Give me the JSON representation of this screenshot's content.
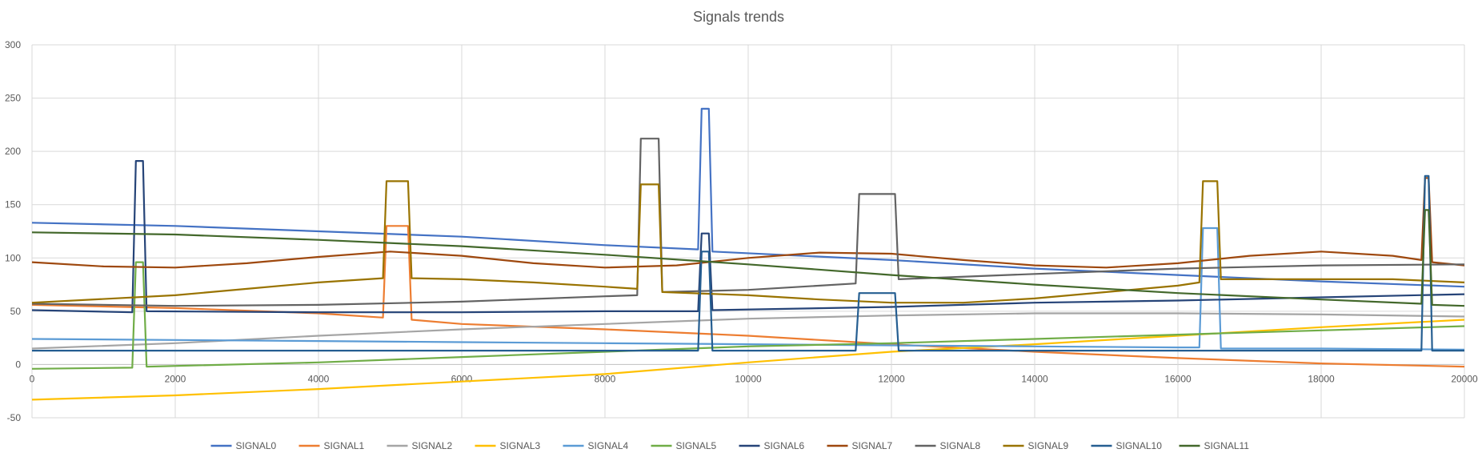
{
  "chart_data": {
    "type": "line",
    "title": "Signals trends",
    "xlim": [
      0,
      20000
    ],
    "ylim": [
      -50,
      300
    ],
    "x_ticks": [
      "0",
      "2000",
      "4000",
      "6000",
      "8000",
      "10000",
      "12000",
      "14000",
      "16000",
      "18000",
      "20000"
    ],
    "y_ticks": [
      "-50",
      "0",
      "50",
      "100",
      "150",
      "200",
      "250",
      "300"
    ],
    "grid": true,
    "legend_position": "bottom",
    "series": [
      {
        "name": "SIGNAL0",
        "color": "#4472c4",
        "points": [
          [
            0,
            133
          ],
          [
            2000,
            130
          ],
          [
            4000,
            125
          ],
          [
            6000,
            120
          ],
          [
            8000,
            112
          ],
          [
            9300,
            108
          ],
          [
            9350,
            240
          ],
          [
            9450,
            240
          ],
          [
            9500,
            106
          ],
          [
            12000,
            98
          ],
          [
            14000,
            90
          ],
          [
            16000,
            84
          ],
          [
            18000,
            78
          ],
          [
            20000,
            73
          ]
        ]
      },
      {
        "name": "SIGNAL1",
        "color": "#ed7d31",
        "points": [
          [
            0,
            56
          ],
          [
            2000,
            53
          ],
          [
            4000,
            48
          ],
          [
            4900,
            44
          ],
          [
            4950,
            130
          ],
          [
            5250,
            130
          ],
          [
            5300,
            42
          ],
          [
            6000,
            38
          ],
          [
            8000,
            33
          ],
          [
            10000,
            27
          ],
          [
            12000,
            19
          ],
          [
            14000,
            12
          ],
          [
            16000,
            6
          ],
          [
            18000,
            1
          ],
          [
            20000,
            -2
          ]
        ]
      },
      {
        "name": "SIGNAL2",
        "color": "#a5a5a5",
        "points": [
          [
            0,
            15
          ],
          [
            2000,
            20
          ],
          [
            4000,
            27
          ],
          [
            6000,
            33
          ],
          [
            8000,
            38
          ],
          [
            10000,
            43
          ],
          [
            12000,
            46
          ],
          [
            14000,
            48
          ],
          [
            16000,
            48
          ],
          [
            18000,
            47
          ],
          [
            20000,
            45
          ]
        ]
      },
      {
        "name": "SIGNAL3",
        "color": "#ffc000",
        "points": [
          [
            0,
            -33
          ],
          [
            2000,
            -29
          ],
          [
            4000,
            -23
          ],
          [
            6000,
            -16
          ],
          [
            8000,
            -9
          ],
          [
            10000,
            2
          ],
          [
            12000,
            12
          ],
          [
            14000,
            19
          ],
          [
            16000,
            27
          ],
          [
            18000,
            35
          ],
          [
            20000,
            42
          ]
        ]
      },
      {
        "name": "SIGNAL4",
        "color": "#5b9bd5",
        "points": [
          [
            0,
            24
          ],
          [
            2000,
            23
          ],
          [
            4000,
            22
          ],
          [
            6000,
            21
          ],
          [
            8000,
            20
          ],
          [
            10000,
            19
          ],
          [
            12000,
            18
          ],
          [
            14000,
            17
          ],
          [
            16000,
            16
          ],
          [
            16300,
            16
          ],
          [
            16350,
            128
          ],
          [
            16550,
            128
          ],
          [
            16600,
            15
          ],
          [
            18000,
            15
          ],
          [
            20000,
            14
          ]
        ]
      },
      {
        "name": "SIGNAL5",
        "color": "#70ad47",
        "points": [
          [
            0,
            -4
          ],
          [
            1400,
            -3
          ],
          [
            1450,
            96
          ],
          [
            1550,
            96
          ],
          [
            1600,
            -2
          ],
          [
            4000,
            2
          ],
          [
            6000,
            7
          ],
          [
            8000,
            12
          ],
          [
            10000,
            17
          ],
          [
            12000,
            20
          ],
          [
            14000,
            24
          ],
          [
            16000,
            28
          ],
          [
            18000,
            32
          ],
          [
            20000,
            36
          ]
        ]
      },
      {
        "name": "SIGNAL6",
        "color": "#264478",
        "points": [
          [
            0,
            51
          ],
          [
            1400,
            49
          ],
          [
            1450,
            191
          ],
          [
            1550,
            191
          ],
          [
            1600,
            50
          ],
          [
            4000,
            49
          ],
          [
            6000,
            49
          ],
          [
            8000,
            50
          ],
          [
            9300,
            50
          ],
          [
            9350,
            123
          ],
          [
            9450,
            123
          ],
          [
            9500,
            51
          ],
          [
            12000,
            54
          ],
          [
            14000,
            58
          ],
          [
            16000,
            60
          ],
          [
            18000,
            63
          ],
          [
            20000,
            66
          ]
        ]
      },
      {
        "name": "SIGNAL7",
        "color": "#9e480e",
        "points": [
          [
            0,
            96
          ],
          [
            1000,
            92
          ],
          [
            2000,
            91
          ],
          [
            3000,
            95
          ],
          [
            4000,
            101
          ],
          [
            5000,
            106
          ],
          [
            6000,
            102
          ],
          [
            7000,
            95
          ],
          [
            8000,
            91
          ],
          [
            9000,
            93
          ],
          [
            10000,
            100
          ],
          [
            11000,
            105
          ],
          [
            12000,
            104
          ],
          [
            13000,
            98
          ],
          [
            14000,
            93
          ],
          [
            15000,
            91
          ],
          [
            16000,
            95
          ],
          [
            17000,
            102
          ],
          [
            18000,
            106
          ],
          [
            19000,
            102
          ],
          [
            19400,
            98
          ],
          [
            19450,
            175
          ],
          [
            19500,
            175
          ],
          [
            19550,
            96
          ],
          [
            20000,
            93
          ]
        ]
      },
      {
        "name": "SIGNAL8",
        "color": "#636363",
        "points": [
          [
            0,
            57
          ],
          [
            2000,
            55
          ],
          [
            4000,
            56
          ],
          [
            6000,
            59
          ],
          [
            8000,
            64
          ],
          [
            8450,
            65
          ],
          [
            8500,
            212
          ],
          [
            8750,
            212
          ],
          [
            8800,
            68
          ],
          [
            10000,
            70
          ],
          [
            11500,
            76
          ],
          [
            11550,
            160
          ],
          [
            12050,
            160
          ],
          [
            12100,
            80
          ],
          [
            14000,
            85
          ],
          [
            16000,
            90
          ],
          [
            18000,
            93
          ],
          [
            20000,
            94
          ]
        ]
      },
      {
        "name": "SIGNAL9",
        "color": "#997300",
        "points": [
          [
            0,
            58
          ],
          [
            2000,
            65
          ],
          [
            3000,
            71
          ],
          [
            4000,
            77
          ],
          [
            4900,
            81
          ],
          [
            4950,
            172
          ],
          [
            5250,
            172
          ],
          [
            5300,
            81
          ],
          [
            6000,
            80
          ],
          [
            7000,
            77
          ],
          [
            8000,
            73
          ],
          [
            8450,
            71
          ],
          [
            8500,
            169
          ],
          [
            8750,
            169
          ],
          [
            8800,
            68
          ],
          [
            10000,
            65
          ],
          [
            11000,
            61
          ],
          [
            12000,
            58
          ],
          [
            13000,
            58
          ],
          [
            14000,
            62
          ],
          [
            15000,
            68
          ],
          [
            16000,
            74
          ],
          [
            16300,
            77
          ],
          [
            16350,
            172
          ],
          [
            16550,
            172
          ],
          [
            16600,
            80
          ],
          [
            18000,
            80
          ],
          [
            19000,
            80
          ],
          [
            20000,
            77
          ]
        ]
      },
      {
        "name": "SIGNAL10",
        "color": "#255e91",
        "points": [
          [
            0,
            13
          ],
          [
            2000,
            13
          ],
          [
            4000,
            13
          ],
          [
            6000,
            13
          ],
          [
            8000,
            13
          ],
          [
            9300,
            13
          ],
          [
            9350,
            106
          ],
          [
            9450,
            106
          ],
          [
            9500,
            13
          ],
          [
            11500,
            13
          ],
          [
            11550,
            67
          ],
          [
            12050,
            67
          ],
          [
            12100,
            13
          ],
          [
            14000,
            13
          ],
          [
            16000,
            13
          ],
          [
            18000,
            13
          ],
          [
            19400,
            13
          ],
          [
            19450,
            177
          ],
          [
            19500,
            177
          ],
          [
            19550,
            13
          ],
          [
            20000,
            13
          ]
        ]
      },
      {
        "name": "SIGNAL11",
        "color": "#43682b",
        "points": [
          [
            0,
            124
          ],
          [
            2000,
            122
          ],
          [
            4000,
            117
          ],
          [
            6000,
            111
          ],
          [
            8000,
            103
          ],
          [
            10000,
            94
          ],
          [
            12000,
            84
          ],
          [
            14000,
            75
          ],
          [
            16000,
            67
          ],
          [
            18000,
            61
          ],
          [
            19400,
            57
          ],
          [
            19450,
            145
          ],
          [
            19500,
            145
          ],
          [
            19550,
            56
          ],
          [
            20000,
            55
          ]
        ]
      }
    ]
  }
}
